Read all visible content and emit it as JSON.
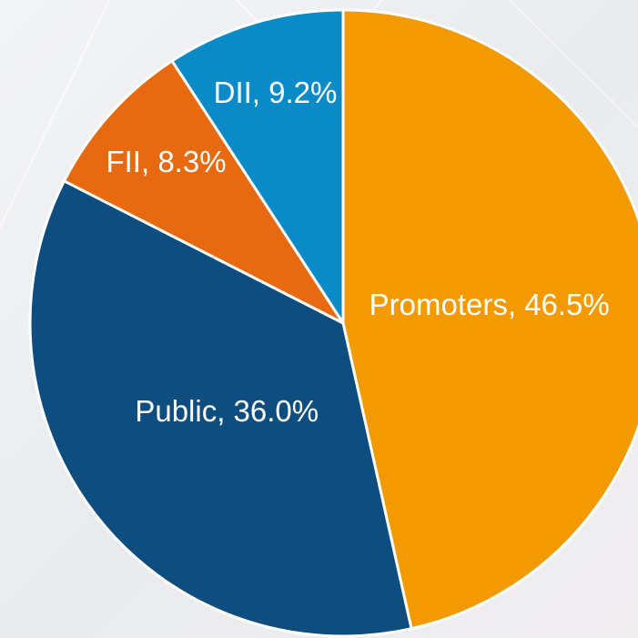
{
  "chart_data": {
    "type": "pie",
    "values": [
      46.5,
      36.0,
      8.3,
      9.2
    ],
    "value_labels": [
      "Promoters, 46.5%",
      "Public, 36.0%",
      "FII, 8.3%",
      "DII, 9.2%"
    ],
    "colors": [
      "#f29a00",
      "#0e4d80",
      "#e86a10",
      "#0a8ac6"
    ]
  }
}
